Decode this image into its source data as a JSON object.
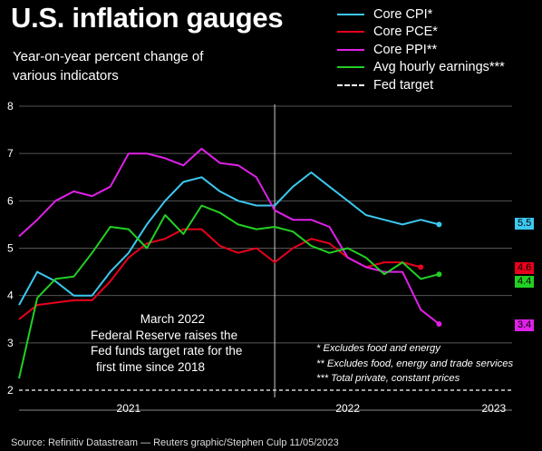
{
  "header": {
    "title": "U.S. inflation gauges",
    "subtitle": "Year-on-year percent change of various indicators"
  },
  "legend": [
    {
      "label": "Core CPI*",
      "color": "#3cc8f0",
      "dashed": false
    },
    {
      "label": "Core PCE*",
      "color": "#e8001c",
      "dashed": false
    },
    {
      "label": "Core PPI**",
      "color": "#e020e8",
      "dashed": false
    },
    {
      "label": "Avg hourly earnings***",
      "color": "#22d022",
      "dashed": false
    },
    {
      "label": "Fed target",
      "color": "#ffffff",
      "dashed": true
    }
  ],
  "annotation": {
    "lines": [
      "March 2022",
      "Federal Reserve raises the",
      "Fed funds target rate for the",
      "first time since 2018"
    ]
  },
  "notes": [
    "* Excludes food and energy",
    "** Excludes food, energy and trade services",
    "*** Total private, constant prices"
  ],
  "source": "Source: Refinitiv Datastream — Reuters graphic/Stephen Culp 11/05/2023",
  "chart_data": {
    "type": "line",
    "title": "U.S. inflation gauges",
    "subtitle": "Year-on-year percent change of various indicators",
    "x_unit": "month",
    "x_start": "2021-01",
    "x_end": "2023-04",
    "x_tick_labels": [
      {
        "label": "2021",
        "at": "2021-07"
      },
      {
        "label": "2022",
        "at": "2022-07"
      },
      {
        "label": "2023",
        "at": "2023-03"
      }
    ],
    "ylim": [
      2,
      8
    ],
    "y_ticks": [
      2,
      3,
      4,
      5,
      6,
      7,
      8
    ],
    "grid": "horizontal",
    "fed_target": 2,
    "event_marker": "2022-03",
    "series": [
      {
        "name": "Core CPI*",
        "color": "#3cc8f0",
        "start": "2021-01",
        "values": [
          3.8,
          4.5,
          4.3,
          4.0,
          4.0,
          4.5,
          4.9,
          5.5,
          6.0,
          6.4,
          6.5,
          6.2,
          6.0,
          5.9,
          5.9,
          6.3,
          6.6,
          6.3,
          6.0,
          5.7,
          5.6,
          5.5,
          5.6,
          5.5
        ],
        "end_label": "5.5"
      },
      {
        "name": "Core PCE*",
        "color": "#e8001c",
        "start": "2021-01",
        "values": [
          3.5,
          3.8,
          3.85,
          3.9,
          3.9,
          4.3,
          4.8,
          5.1,
          5.2,
          5.4,
          5.4,
          5.05,
          4.9,
          5.0,
          4.7,
          5.0,
          5.2,
          5.1,
          4.8,
          4.6,
          4.7,
          4.7,
          4.6
        ],
        "end_label": "4.6"
      },
      {
        "name": "Core PPI**",
        "color": "#e020e8",
        "start": "2021-01",
        "values": [
          5.25,
          5.6,
          6.0,
          6.2,
          6.1,
          6.3,
          7.0,
          7.0,
          6.9,
          6.75,
          7.1,
          6.8,
          6.75,
          6.5,
          5.8,
          5.6,
          5.6,
          5.45,
          4.8,
          4.6,
          4.5,
          4.5,
          3.7,
          3.4
        ],
        "end_label": "3.4"
      },
      {
        "name": "Avg hourly earnings***",
        "color": "#22d022",
        "start": "2021-01",
        "values": [
          2.25,
          3.95,
          4.35,
          4.4,
          4.9,
          5.45,
          5.4,
          5.0,
          5.7,
          5.3,
          5.9,
          5.75,
          5.5,
          5.4,
          5.45,
          5.35,
          5.05,
          4.9,
          5.0,
          4.8,
          4.45,
          4.7,
          4.35,
          4.45
        ],
        "end_label": "4.4"
      }
    ]
  }
}
